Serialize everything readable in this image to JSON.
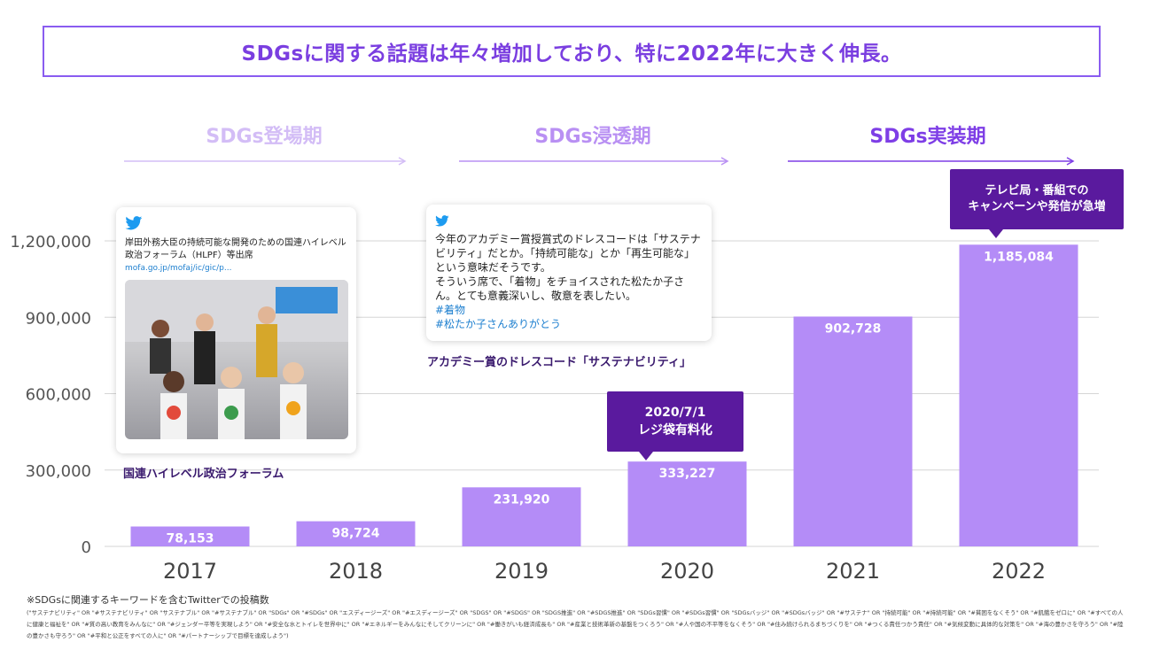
{
  "headline": "SDGsに関する話題は年々増加しており、特に2022年に大きく伸長。",
  "phases": [
    {
      "label": "SDGs登場期",
      "color": "#d3bdf6"
    },
    {
      "label": "SDGs浸透期",
      "color": "#b990f3"
    },
    {
      "label": "SDGs実装期",
      "color": "#7e3ee6"
    }
  ],
  "callouts": {
    "c2020": {
      "line1": "2020/7/1",
      "line2": "レジ袋有料化"
    },
    "c2022": {
      "line1": "テレビ局・番組での",
      "line2": "キャンペーンや発信が急増"
    }
  },
  "tweet1": {
    "icon": "twitter-bird-icon",
    "text": "岸田外務大臣の持続可能な開発のための国連ハイレベル政治フォーラム（HLPF）等出席",
    "link": "mofa.go.jp/mofaj/ic/gic/p..."
  },
  "tweet2": {
    "icon": "twitter-bird-icon",
    "text": "今年のアカデミー賞授賞式のドレスコードは「サステナビリティ」だとか。「持続可能な」とか「再生可能な」という意味だそうです。\nそういう席で、「着物」をチョイスされた松たか子さん。とても意義深いし、敬意を表したい。",
    "tag1": "#着物",
    "tag2": "#松たか子さんありがとう"
  },
  "captions": {
    "c1": "国連ハイレベル政治フォーラム",
    "c2": "アカデミー賞のドレスコード「サステナビリティ」"
  },
  "chart_data": {
    "type": "bar",
    "categories": [
      "2017",
      "2018",
      "2019",
      "2020",
      "2021",
      "2022"
    ],
    "values": [
      78153,
      98724,
      231920,
      333227,
      902728,
      1185084
    ],
    "value_labels": [
      "78,153",
      "98,724",
      "231,920",
      "333,227",
      "902,728",
      "1,185,084"
    ],
    "yticks": [
      "0",
      "300,000",
      "600,000",
      "900,000",
      "1,200,000"
    ],
    "ytick_values": [
      0,
      300000,
      600000,
      900000,
      1200000
    ],
    "ylim": [
      0,
      1200000
    ],
    "grid": true,
    "bar_color": "#b48cf7"
  },
  "footnote": {
    "title": "※SDGsに関連するキーワードを含むTwitterでの投稿数",
    "body": "(\"サステナビリティ\" OR \"#サステナビリティ\" OR \"サステナブル\" OR \"#サステナブル\" OR \"SDGs\" OR \"#SDGs\" OR \"エスディージーズ\" OR \"#エスディージーズ\" OR \"SDGS\" OR \"#SDGS\" OR \"SDGS推進\" OR \"#SDGS推進\" OR \"SDGs習慣\" OR \"#SDGs習慣\" OR \"SDGsバッジ\" OR \"#SDGsバッジ\" OR \"#サステナ\" OR \"持続可能\" OR \"#持続可能\" OR \"#貧困をなくそう\" OR \"#飢餓をゼロに\" OR \"#すべての人に健康と福祉を\" OR \"#質の高い教育をみんなに\" OR \"#ジェンダー平等を実現しよう\" OR \"#安全な水とトイレを世界中に\" OR \"#エネルギーをみんなにそしてクリーンに\" OR \"#働きがいも経済成長も\" OR \"#産業と技術革新の基盤をつくろう\" OR \"#人や国の不平等をなくそう\" OR \"#住み続けられるまちづくりを\" OR \"#つくる責任つかう責任\" OR \"#気候変動に具体的な対策を\" OR \"#海の豊かさを守ろう\" OR \"#陸の豊かさも守ろう\" OR \"#平和と公正をすべての人に\" OR \"#パートナーシップで目標を達成しよう\")"
  }
}
